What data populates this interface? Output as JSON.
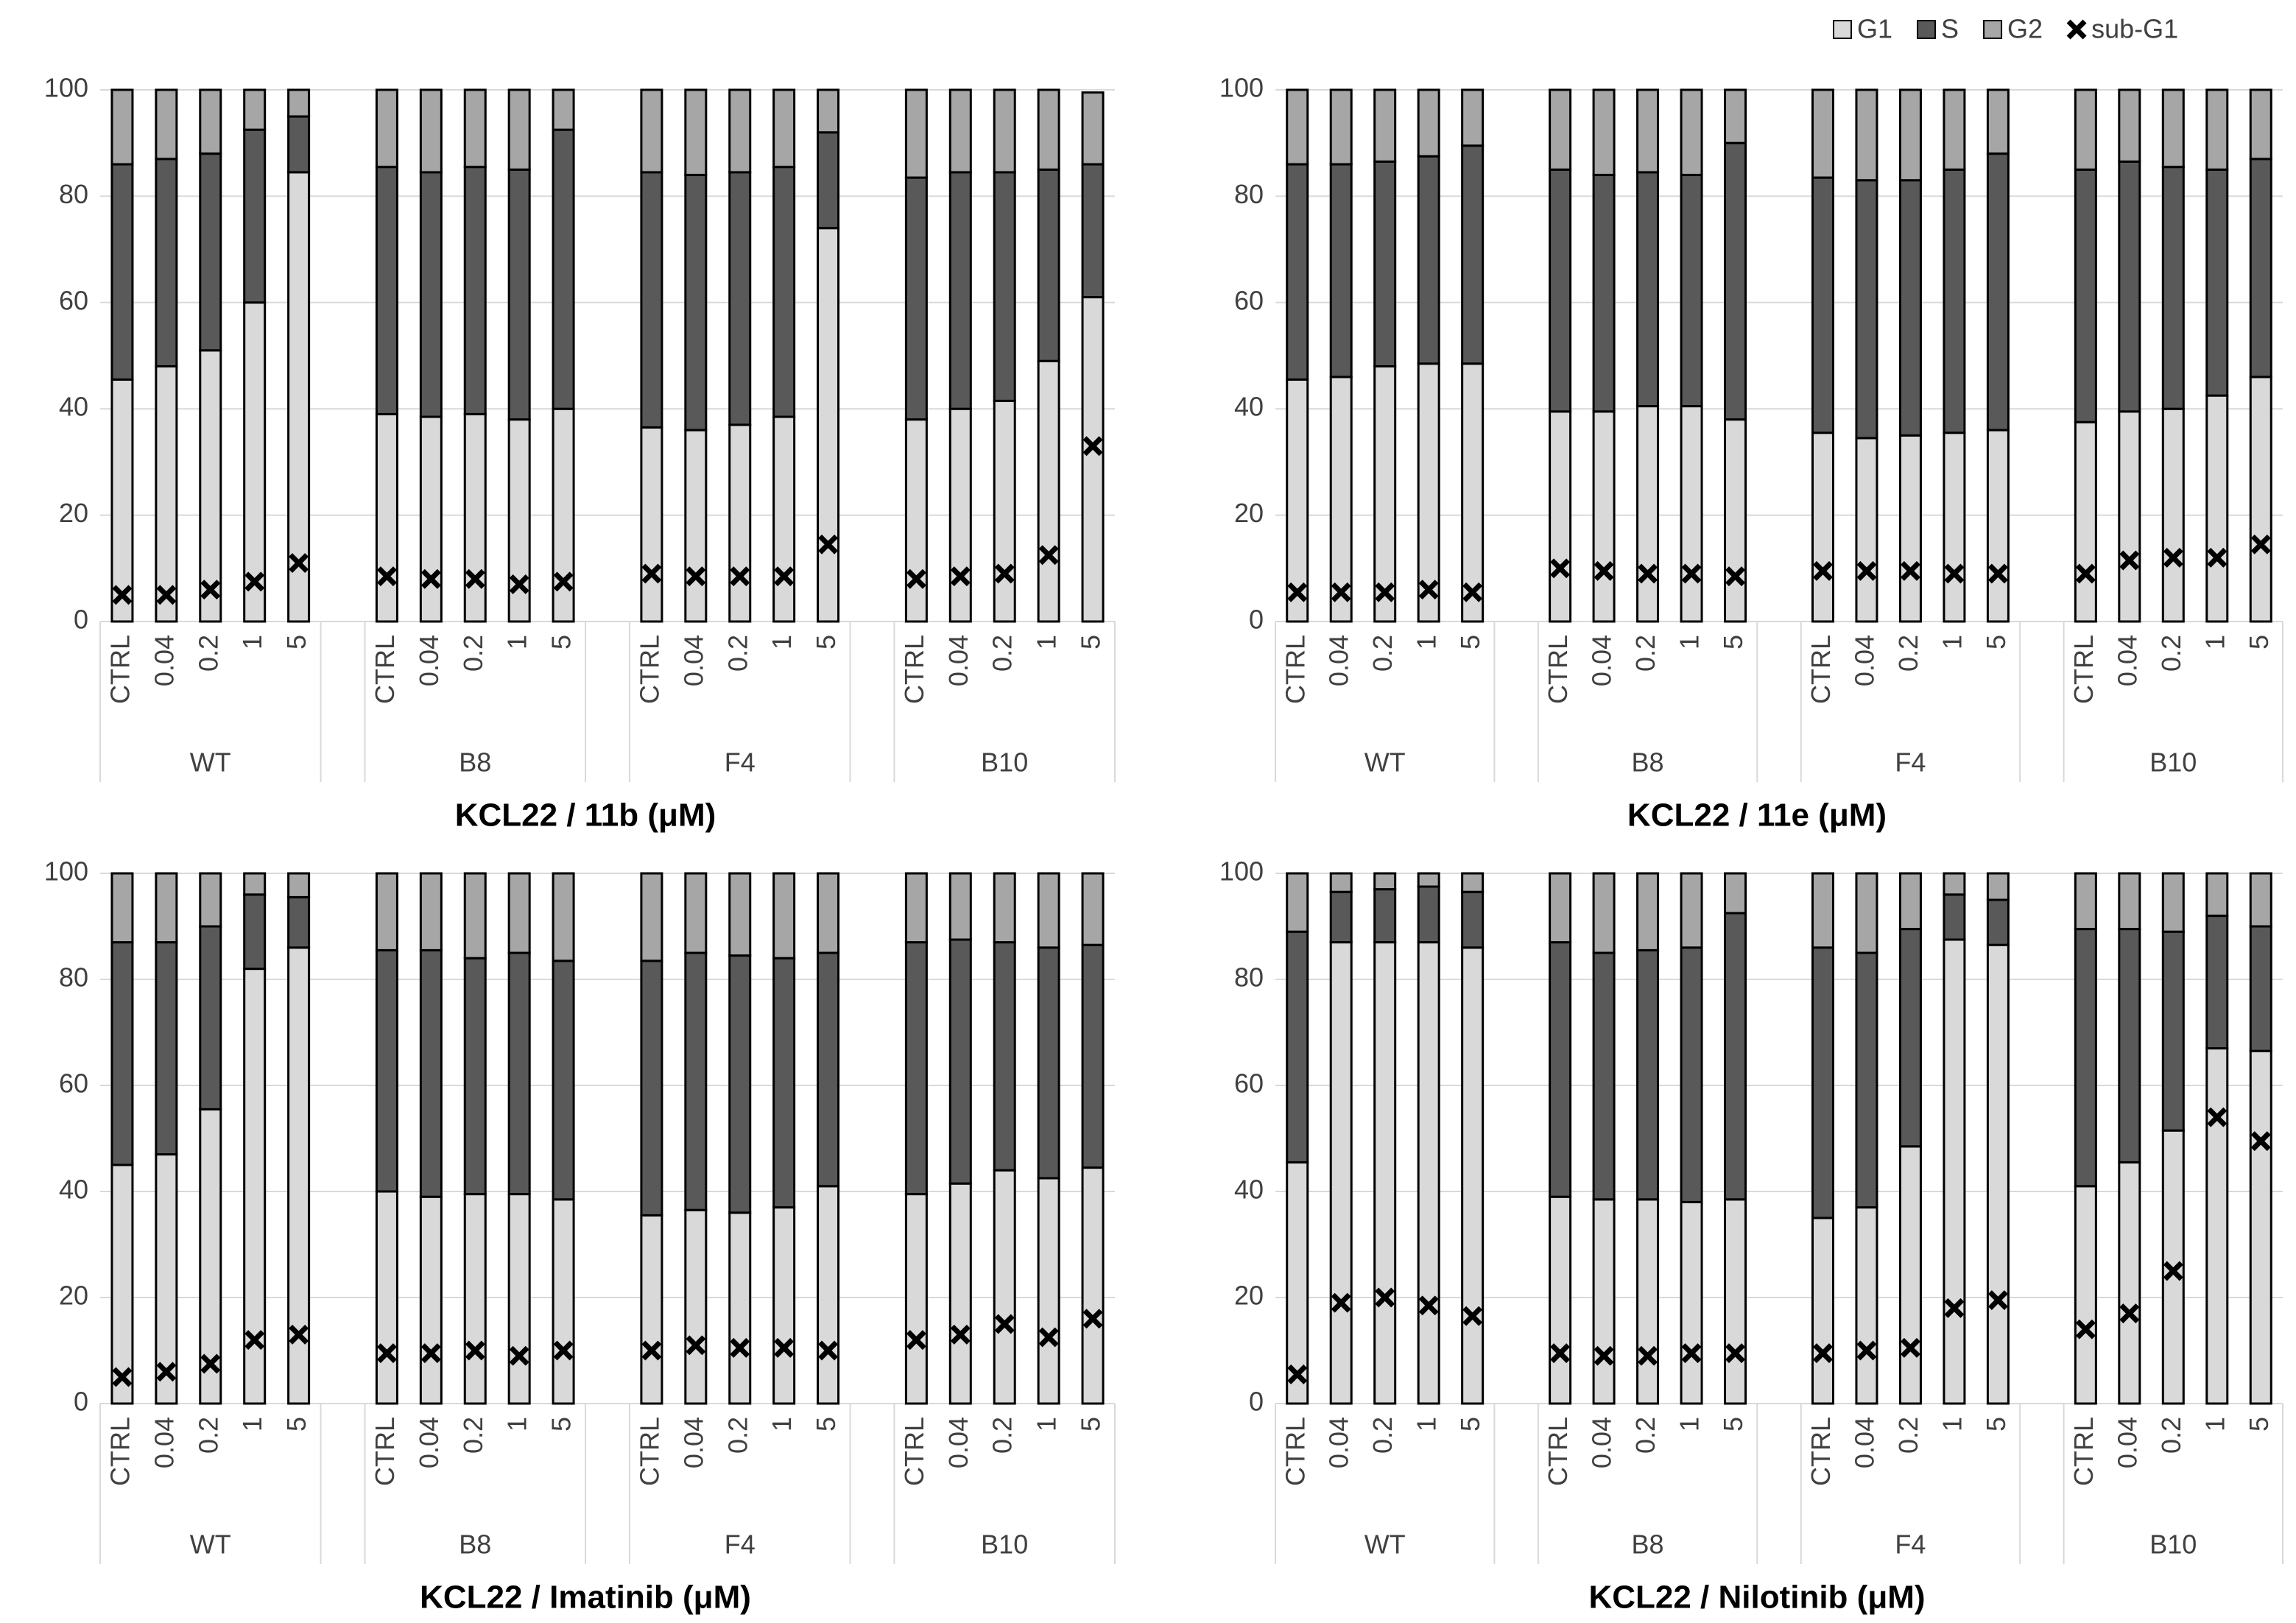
{
  "legend": {
    "position": "top-right",
    "items": [
      {
        "name": "G1",
        "color": "#d9d9d9"
      },
      {
        "name": "S",
        "color": "#595959"
      },
      {
        "name": "G2",
        "color": "#a6a6a6"
      },
      {
        "name": "sub-G1",
        "color": "#000000",
        "marker": "x"
      }
    ]
  },
  "chart_data": [
    {
      "type": "bar",
      "stacked": true,
      "xlabel": "KCL22 / 11b (μM)",
      "categories": [
        "CTRL",
        "0.04",
        "0.2",
        "1",
        "5",
        "CTRL",
        "0.04",
        "0.2",
        "1",
        "5",
        "CTRL",
        "0.04",
        "0.2",
        "1",
        "5",
        "CTRL",
        "0.04",
        "0.2",
        "1",
        "5"
      ],
      "groups": [
        "WT",
        "B8",
        "F4",
        "B10"
      ],
      "series": [
        {
          "values": [
            45.5,
            48,
            51,
            60,
            84.5,
            39,
            38.5,
            39,
            38,
            40,
            36.5,
            36,
            37,
            38.5,
            74,
            38,
            40,
            41.5,
            49,
            61
          ]
        },
        {
          "values": [
            40.5,
            39,
            37,
            32.5,
            10.5,
            46.5,
            46,
            46.5,
            47,
            52.5,
            48,
            48,
            47.5,
            47,
            18,
            45.5,
            44.5,
            43,
            36,
            25
          ]
        },
        {
          "values": [
            14,
            13,
            12,
            7.5,
            5,
            14.5,
            15.5,
            14.5,
            15,
            7.5,
            15.5,
            16,
            15.5,
            14.5,
            8,
            16.5,
            15.5,
            15.5,
            15,
            13.5
          ]
        },
        {
          "type": "marker",
          "values": [
            5,
            5,
            6,
            7.5,
            11,
            8.5,
            8,
            8,
            7,
            7.5,
            9,
            8.5,
            8.5,
            8.5,
            14.5,
            8,
            8.5,
            9,
            12.5,
            33
          ]
        }
      ],
      "ylim": [
        0,
        100
      ],
      "yticks": [
        0,
        20,
        40,
        60,
        80,
        100
      ],
      "grid": true
    },
    {
      "type": "bar",
      "stacked": true,
      "xlabel": "KCL22 / 11e (μM)",
      "categories": [
        "CTRL",
        "0.04",
        "0.2",
        "1",
        "5",
        "CTRL",
        "0.04",
        "0.2",
        "1",
        "5",
        "CTRL",
        "0.04",
        "0.2",
        "1",
        "5",
        "CTRL",
        "0.04",
        "0.2",
        "1",
        "5"
      ],
      "groups": [
        "WT",
        "B8",
        "F4",
        "B10"
      ],
      "series": [
        {
          "values": [
            45.5,
            46,
            48,
            48.5,
            48.5,
            39.5,
            39.5,
            40.5,
            40.5,
            38,
            35.5,
            34.5,
            35,
            35.5,
            36,
            37.5,
            39.5,
            40,
            42.5,
            46
          ]
        },
        {
          "values": [
            40.5,
            40,
            38.5,
            39,
            41,
            45.5,
            44.5,
            44,
            43.5,
            52,
            48,
            48.5,
            48,
            49.5,
            52,
            47.5,
            47,
            45.5,
            42.5,
            41
          ]
        },
        {
          "values": [
            14,
            14,
            13.5,
            12.5,
            10.5,
            15,
            16,
            15.5,
            16,
            10,
            16.5,
            17,
            17,
            15,
            12,
            15,
            13.5,
            14.5,
            15,
            13
          ]
        },
        {
          "type": "marker",
          "values": [
            5.5,
            5.5,
            5.5,
            6,
            5.5,
            10,
            9.5,
            9,
            9,
            8.5,
            9.5,
            9.5,
            9.5,
            9,
            9,
            9,
            11.5,
            12,
            12,
            14.5
          ]
        }
      ],
      "ylim": [
        0,
        100
      ],
      "yticks": [
        0,
        20,
        40,
        60,
        80,
        100
      ],
      "grid": true
    },
    {
      "type": "bar",
      "stacked": true,
      "xlabel": "KCL22 / Imatinib (μM)",
      "categories": [
        "CTRL",
        "0.04",
        "0.2",
        "1",
        "5",
        "CTRL",
        "0.04",
        "0.2",
        "1",
        "5",
        "CTRL",
        "0.04",
        "0.2",
        "1",
        "5",
        "CTRL",
        "0.04",
        "0.2",
        "1",
        "5"
      ],
      "groups": [
        "WT",
        "B8",
        "F4",
        "B10"
      ],
      "series": [
        {
          "values": [
            45,
            47,
            55.5,
            82,
            86,
            40,
            39,
            39.5,
            39.5,
            38.5,
            35.5,
            36.5,
            36,
            37,
            41,
            39.5,
            41.5,
            44,
            42.5,
            44.5
          ]
        },
        {
          "values": [
            42,
            40,
            34.5,
            14,
            9.5,
            45.5,
            46.5,
            44.5,
            45.5,
            45,
            48,
            48.5,
            48.5,
            47,
            44,
            47.5,
            46,
            43,
            43.5,
            42
          ]
        },
        {
          "values": [
            13,
            13,
            10,
            4,
            4.5,
            14.5,
            14.5,
            16,
            15,
            16.5,
            16.5,
            15,
            15.5,
            16,
            15,
            13,
            12.5,
            13,
            14,
            13.5
          ]
        },
        {
          "type": "marker",
          "values": [
            5,
            6,
            7.5,
            12,
            13,
            9.5,
            9.5,
            10,
            9,
            10,
            10,
            11,
            10.5,
            10.5,
            10,
            12,
            13,
            15,
            12.5,
            16
          ]
        }
      ],
      "ylim": [
        0,
        100
      ],
      "yticks": [
        0,
        20,
        40,
        60,
        80,
        100
      ],
      "grid": true
    },
    {
      "type": "bar",
      "stacked": true,
      "xlabel": "KCL22 / Nilotinib (μM)",
      "categories": [
        "CTRL",
        "0.04",
        "0.2",
        "1",
        "5",
        "CTRL",
        "0.04",
        "0.2",
        "1",
        "5",
        "CTRL",
        "0.04",
        "0.2",
        "1",
        "5",
        "CTRL",
        "0.04",
        "0.2",
        "1",
        "5"
      ],
      "groups": [
        "WT",
        "B8",
        "F4",
        "B10"
      ],
      "series": [
        {
          "values": [
            45.5,
            87,
            87,
            87,
            86,
            39,
            38.5,
            38.5,
            38,
            38.5,
            35,
            37,
            48.5,
            87.5,
            86.5,
            41,
            45.5,
            51.5,
            67,
            66.5
          ]
        },
        {
          "values": [
            43.5,
            9.5,
            10,
            10.5,
            10.5,
            48,
            46.5,
            47,
            48,
            54,
            51,
            48,
            41,
            8.5,
            8.5,
            48.5,
            44,
            37.5,
            25,
            23.5
          ]
        },
        {
          "values": [
            11,
            3.5,
            3,
            2.5,
            3.5,
            13,
            15,
            14.5,
            14,
            7.5,
            14,
            15,
            10.5,
            4,
            5,
            10.5,
            10.5,
            11,
            8,
            10
          ]
        },
        {
          "type": "marker",
          "values": [
            5.5,
            19,
            20,
            18.5,
            16.5,
            9.5,
            9,
            9,
            9.5,
            9.5,
            9.5,
            10,
            10.5,
            18,
            19.5,
            14,
            17,
            25,
            54,
            49.5
          ]
        }
      ],
      "ylim": [
        0,
        100
      ],
      "yticks": [
        0,
        20,
        40,
        60,
        80,
        100
      ],
      "grid": true
    }
  ]
}
